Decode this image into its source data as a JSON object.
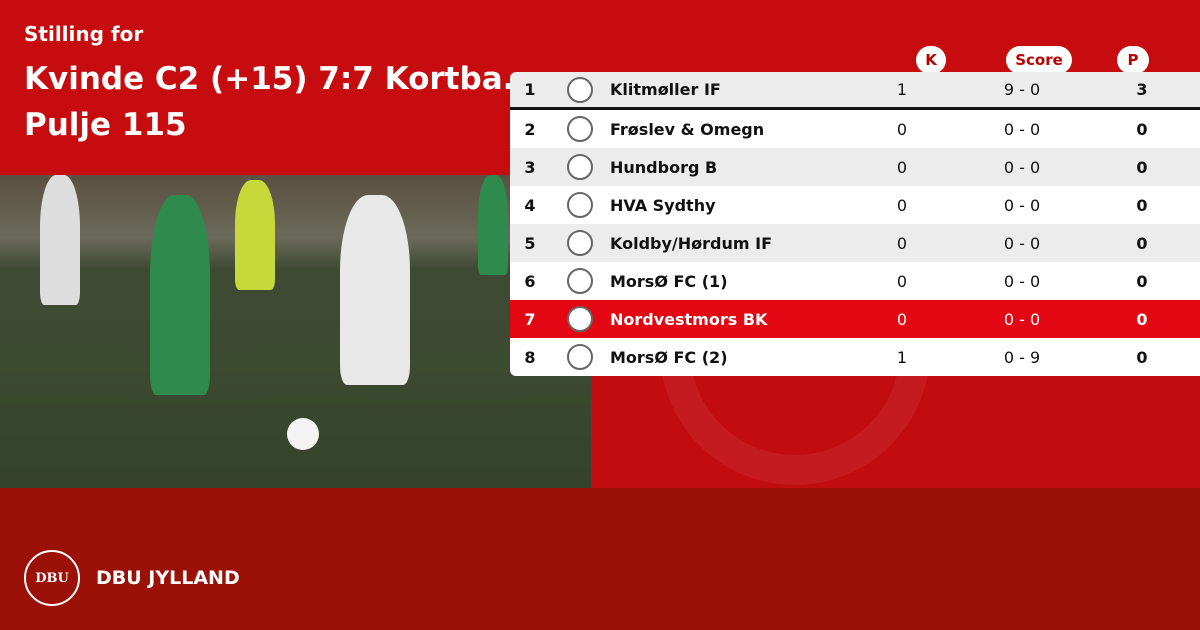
{
  "header": {
    "subtitle": "Stilling for",
    "title_line1": "Kvinde C2 (+15) 7:7 Kortba..",
    "title_line2": "Pulje 115"
  },
  "columns": {
    "k": "K",
    "score": "Score",
    "p": "P"
  },
  "rows": [
    {
      "pos": "1",
      "team": "Klitmøller IF",
      "k": "1",
      "score": "9 - 0",
      "p": "3"
    },
    {
      "pos": "2",
      "team": "Frøslev & Omegn",
      "k": "0",
      "score": "0 - 0",
      "p": "0"
    },
    {
      "pos": "3",
      "team": "Hundborg B",
      "k": "0",
      "score": "0 - 0",
      "p": "0"
    },
    {
      "pos": "4",
      "team": "HVA Sydthy",
      "k": "0",
      "score": "0 - 0",
      "p": "0"
    },
    {
      "pos": "5",
      "team": "Koldby/Hørdum IF",
      "k": "0",
      "score": "0 - 0",
      "p": "0"
    },
    {
      "pos": "6",
      "team": "MorsØ FC (1)",
      "k": "0",
      "score": "0 - 0",
      "p": "0"
    },
    {
      "pos": "7",
      "team": "Nordvestmors BK",
      "k": "0",
      "score": "0 - 0",
      "p": "0"
    },
    {
      "pos": "8",
      "team": "MorsØ FC (2)",
      "k": "1",
      "score": "0 - 9",
      "p": "0"
    }
  ],
  "highlight_row": 7,
  "colors": {
    "top": "#c60c0f",
    "bottom": "#9b1007",
    "highlight": "#e30613"
  },
  "footer": {
    "brand": "DBU JYLLAND",
    "logo_text": "DBU"
  }
}
